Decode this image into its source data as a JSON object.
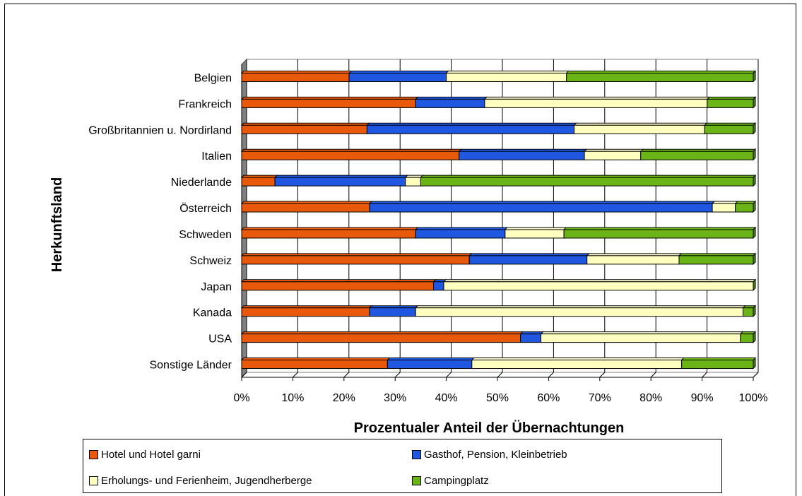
{
  "colors": {
    "hotel": "#E8590C",
    "gasthof": "#1F57E0",
    "erholung": "#FFFFC0",
    "camping": "#6AB417"
  },
  "chart_data": {
    "type": "bar",
    "orientation": "horizontal",
    "stacked": "percent",
    "xlabel": "Prozentualer Anteil der Übernachtungen",
    "ylabel": "Herkunftsland",
    "xlim": [
      0,
      100
    ],
    "xticks": [
      "0%",
      "10%",
      "20%",
      "30%",
      "40%",
      "50%",
      "60%",
      "70%",
      "80%",
      "90%",
      "100%"
    ],
    "grid": true,
    "legend_position": "bottom",
    "categories": [
      "Belgien",
      "Frankreich",
      "Großbritannien u. Nordirland",
      "Italien",
      "Niederlande",
      "Österreich",
      "Schweden",
      "Schweiz",
      "Japan",
      "Kanada",
      "USA",
      "Sonstige Länder"
    ],
    "series": [
      {
        "name": "Hotel und Hotel garni",
        "color_key": "hotel",
        "values": [
          21,
          34,
          24.5,
          42.5,
          6.5,
          25,
          34,
          44.5,
          37.5,
          25,
          54.5,
          28.5
        ]
      },
      {
        "name": "Gasthof, Pension, Kleinbetrieb",
        "color_key": "gasthof",
        "values": [
          19,
          13.5,
          40.5,
          24.5,
          25.5,
          67,
          17.5,
          23,
          2,
          9,
          4,
          16.5
        ]
      },
      {
        "name": "Erholungs- und Ferienheim, Jugendherberge",
        "color_key": "erholung",
        "values": [
          23.5,
          43.5,
          25.5,
          11,
          3,
          4.5,
          11.5,
          18,
          60.5,
          64,
          39,
          41
        ]
      },
      {
        "name": "Campingplatz",
        "color_key": "camping",
        "values": [
          36.5,
          9,
          9.5,
          22,
          65,
          3.5,
          37,
          14.5,
          0,
          2,
          2.5,
          14
        ]
      }
    ]
  }
}
